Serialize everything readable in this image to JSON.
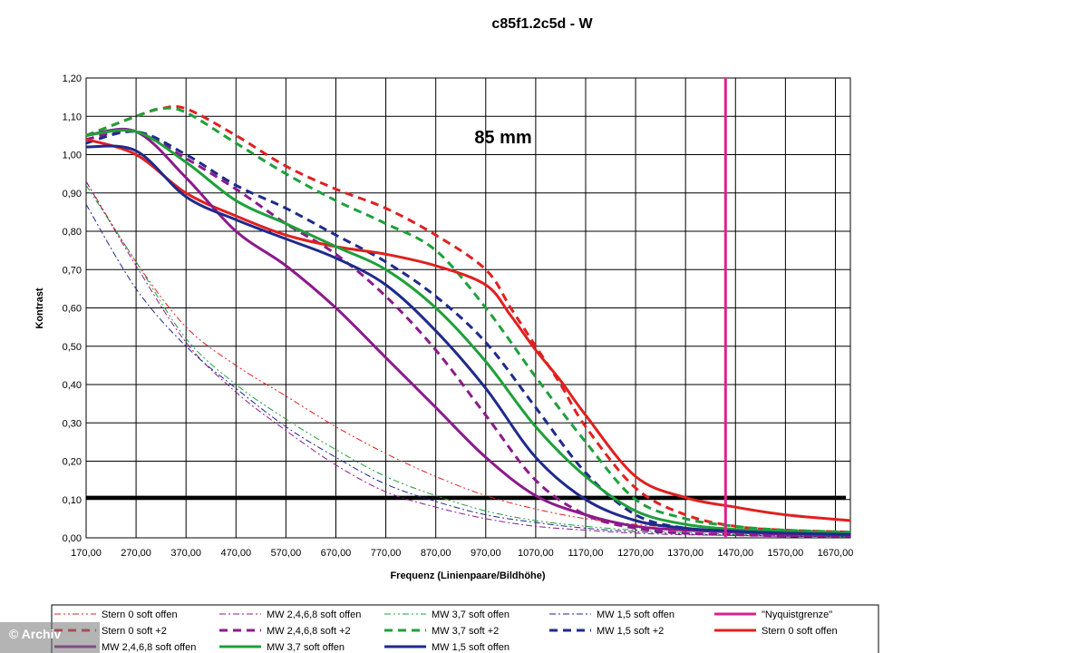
{
  "credit": "© Archiv",
  "chart_data": {
    "type": "line",
    "title": "c85f1.2c5d - W",
    "annotation": "85 mm",
    "xlabel": "Frequenz (Linienpaare/Bildhöhe)",
    "ylabel": "Kontrast",
    "xlim": [
      170,
      1700
    ],
    "ylim": [
      0,
      1.2
    ],
    "xticks": [
      "170,00",
      "270,00",
      "370,00",
      "470,00",
      "570,00",
      "670,00",
      "770,00",
      "870,00",
      "970,00",
      "1070,00",
      "1170,00",
      "1270,00",
      "1370,00",
      "1470,00",
      "1570,00",
      "1670,00"
    ],
    "yticks": [
      "0,00",
      "0,10",
      "0,20",
      "0,30",
      "0,40",
      "0,50",
      "0,60",
      "0,70",
      "0,80",
      "0,90",
      "1,00",
      "1,10",
      "1,20"
    ],
    "grid": true,
    "legend_position": "bottom",
    "reference_line": {
      "y": 0.105,
      "color": "#000000"
    },
    "series": [
      {
        "name": "Stern 0 soft offen",
        "color": "#e0201f",
        "style": "dashdotdot",
        "width": 1,
        "x": [
          170,
          270,
          370,
          470,
          570,
          670,
          770,
          870,
          970,
          1070,
          1170,
          1270,
          1370,
          1470,
          1570,
          1700
        ],
        "y": [
          0.93,
          0.72,
          0.55,
          0.45,
          0.37,
          0.29,
          0.22,
          0.16,
          0.11,
          0.075,
          0.05,
          0.035,
          0.025,
          0.018,
          0.013,
          0.01
        ]
      },
      {
        "name": "MW 2,4,6,8 soft offen",
        "color": "#8c1a8c",
        "style": "dashdot",
        "width": 1,
        "x": [
          170,
          270,
          370,
          470,
          570,
          670,
          770,
          870,
          970,
          1070,
          1170,
          1270,
          1370,
          1470,
          1570,
          1700
        ],
        "y": [
          0.93,
          0.71,
          0.51,
          0.38,
          0.28,
          0.19,
          0.12,
          0.08,
          0.05,
          0.03,
          0.02,
          0.012,
          0.008,
          0.006,
          0.004,
          0.003
        ]
      },
      {
        "name": "MW 3,7 soft offen",
        "color": "#1ea03a",
        "style": "dashdotdot",
        "width": 1,
        "x": [
          170,
          270,
          370,
          470,
          570,
          670,
          770,
          870,
          970,
          1070,
          1170,
          1270,
          1370,
          1470,
          1570,
          1700
        ],
        "y": [
          0.92,
          0.72,
          0.52,
          0.4,
          0.31,
          0.23,
          0.16,
          0.11,
          0.07,
          0.045,
          0.03,
          0.02,
          0.013,
          0.009,
          0.006,
          0.004
        ]
      },
      {
        "name": "MW 1,5 soft offen",
        "color": "#1f2a8c",
        "style": "dashdot",
        "width": 1,
        "x": [
          170,
          270,
          370,
          470,
          570,
          670,
          770,
          870,
          970,
          1070,
          1170,
          1270,
          1370,
          1470,
          1570,
          1700
        ],
        "y": [
          0.87,
          0.65,
          0.5,
          0.39,
          0.29,
          0.21,
          0.14,
          0.095,
          0.06,
          0.04,
          0.025,
          0.016,
          0.01,
          0.007,
          0.005,
          0.003
        ]
      },
      {
        "name": "\"Nyquistgrenze\"",
        "color": "#e0208c",
        "style": "solid",
        "width": 3,
        "x": [
          1450,
          1450
        ],
        "y": [
          0,
          1.2
        ]
      },
      {
        "name": "Stern 0 soft +2",
        "color": "#e0201f",
        "style": "dashed",
        "width": 3,
        "x": [
          170,
          270,
          320,
          370,
          470,
          570,
          670,
          770,
          870,
          970,
          1020,
          1070,
          1120,
          1170,
          1270,
          1370,
          1470,
          1570,
          1700
        ],
        "y": [
          1.05,
          1.1,
          1.12,
          1.12,
          1.05,
          0.97,
          0.91,
          0.86,
          0.79,
          0.7,
          0.6,
          0.5,
          0.4,
          0.29,
          0.13,
          0.06,
          0.03,
          0.02,
          0.015
        ]
      },
      {
        "name": "MW 2,4,6,8 soft +2",
        "color": "#8c1a8c",
        "style": "dashed",
        "width": 3,
        "x": [
          170,
          270,
          370,
          470,
          570,
          670,
          770,
          870,
          970,
          1070,
          1170,
          1270,
          1370,
          1470,
          1570,
          1700
        ],
        "y": [
          1.04,
          1.06,
          0.99,
          0.91,
          0.82,
          0.74,
          0.63,
          0.49,
          0.32,
          0.15,
          0.06,
          0.025,
          0.012,
          0.008,
          0.005,
          0.004
        ]
      },
      {
        "name": "MW 3,7 soft +2",
        "color": "#1ea03a",
        "style": "dashed",
        "width": 3,
        "x": [
          170,
          270,
          320,
          370,
          470,
          570,
          670,
          770,
          870,
          970,
          1070,
          1170,
          1270,
          1370,
          1470,
          1570,
          1700
        ],
        "y": [
          1.05,
          1.1,
          1.12,
          1.11,
          1.03,
          0.95,
          0.88,
          0.82,
          0.75,
          0.6,
          0.42,
          0.25,
          0.1,
          0.05,
          0.03,
          0.02,
          0.015
        ]
      },
      {
        "name": "MW 1,5 soft +2",
        "color": "#1f2a8c",
        "style": "dashed",
        "width": 3,
        "x": [
          170,
          270,
          370,
          470,
          570,
          670,
          770,
          870,
          970,
          1070,
          1170,
          1270,
          1370,
          1470,
          1570,
          1700
        ],
        "y": [
          1.03,
          1.06,
          1.0,
          0.92,
          0.86,
          0.79,
          0.72,
          0.63,
          0.51,
          0.34,
          0.17,
          0.06,
          0.025,
          0.015,
          0.01,
          0.008
        ]
      },
      {
        "name": "Stern 0 soft offen",
        "color": "#e0201f",
        "style": "solid",
        "width": 3,
        "x": [
          170,
          270,
          370,
          470,
          570,
          670,
          770,
          870,
          970,
          1020,
          1070,
          1120,
          1170,
          1270,
          1370,
          1470,
          1570,
          1700
        ],
        "y": [
          1.04,
          1.0,
          0.9,
          0.84,
          0.79,
          0.76,
          0.74,
          0.71,
          0.66,
          0.58,
          0.49,
          0.41,
          0.32,
          0.16,
          0.105,
          0.08,
          0.06,
          0.045
        ]
      },
      {
        "name": "MW 2,4,6,8 soft offen",
        "color": "#8c1a8c",
        "style": "solid",
        "width": 3,
        "x": [
          170,
          270,
          370,
          470,
          570,
          670,
          770,
          870,
          970,
          1070,
          1170,
          1270,
          1370,
          1470,
          1570,
          1700
        ],
        "y": [
          1.05,
          1.06,
          0.94,
          0.8,
          0.71,
          0.6,
          0.47,
          0.34,
          0.21,
          0.11,
          0.06,
          0.03,
          0.02,
          0.015,
          0.01,
          0.008
        ]
      },
      {
        "name": "MW 3,7 soft offen",
        "color": "#1ea03a",
        "style": "solid",
        "width": 3,
        "x": [
          170,
          270,
          370,
          470,
          570,
          670,
          770,
          870,
          970,
          1070,
          1170,
          1270,
          1370,
          1470,
          1570,
          1700
        ],
        "y": [
          1.05,
          1.06,
          0.98,
          0.88,
          0.82,
          0.76,
          0.7,
          0.6,
          0.46,
          0.29,
          0.16,
          0.07,
          0.035,
          0.022,
          0.017,
          0.012
        ]
      },
      {
        "name": "MW 1,5 soft offen",
        "color": "#1f2a8c",
        "style": "solid",
        "width": 3,
        "x": [
          170,
          270,
          370,
          470,
          570,
          670,
          770,
          870,
          970,
          1070,
          1170,
          1270,
          1370,
          1470,
          1570,
          1700
        ],
        "y": [
          1.02,
          1.01,
          0.89,
          0.83,
          0.78,
          0.73,
          0.66,
          0.54,
          0.39,
          0.21,
          0.1,
          0.045,
          0.025,
          0.017,
          0.012,
          0.009
        ]
      }
    ]
  }
}
